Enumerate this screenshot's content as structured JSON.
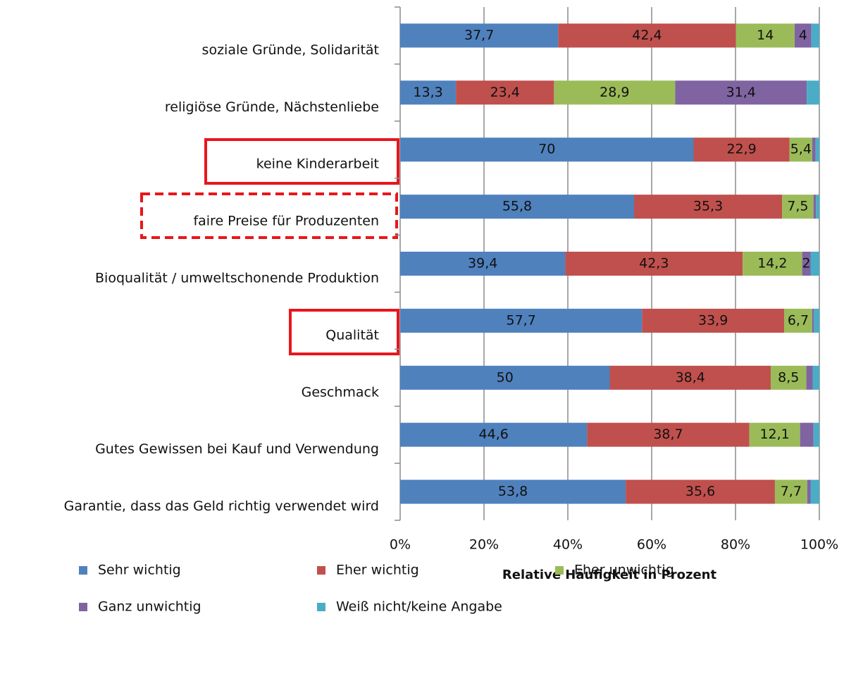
{
  "chart_data": {
    "type": "stacked_barh",
    "categories": [
      "soziale Gründe, Solidarität",
      "religiöse Gründe, Nächstenliebe",
      "keine Kinderarbeit",
      "faire Preise für Produzenten",
      "Bioqualität / umweltschonende Produktion",
      "Qualität",
      "Geschmack",
      "Gutes Gewissen bei Kauf und Verwendung",
      "Garantie, dass das Geld richtig verwendet wird"
    ],
    "series": [
      {
        "name": "Sehr wichtig",
        "color": "#4f81bd",
        "values": [
          37.7,
          13.3,
          70,
          55.8,
          39.4,
          57.7,
          50,
          44.6,
          53.8
        ],
        "value_labels": [
          "37,7",
          "13,3",
          "70",
          "55,8",
          "39,4",
          "57,7",
          "50",
          "44,6",
          "53,8"
        ]
      },
      {
        "name": "Eher wichtig",
        "color": "#c0504d",
        "values": [
          42.4,
          23.4,
          22.9,
          35.3,
          42.3,
          33.9,
          38.4,
          38.7,
          35.6
        ],
        "value_labels": [
          "42,4",
          "23,4",
          "22,9",
          "35,3",
          "42,3",
          "33,9",
          "38,4",
          "38,7",
          "35,6"
        ]
      },
      {
        "name": "Eher unwichtig",
        "color": "#9bbb59",
        "values": [
          14,
          28.9,
          5.4,
          7.5,
          14.2,
          6.7,
          8.5,
          12.1,
          7.7
        ],
        "value_labels": [
          "14",
          "28,9",
          "5,4",
          "7,5",
          "14,2",
          "6,7",
          "8,5",
          "12,1",
          "7,7"
        ]
      },
      {
        "name": "Ganz unwichtig",
        "color": "#8064a2",
        "values": [
          4,
          31.4,
          0.8,
          0.6,
          2,
          0.4,
          1.5,
          3.2,
          0.8
        ],
        "value_labels": [
          "4",
          "31,4",
          null,
          null,
          "2",
          null,
          null,
          null,
          null
        ]
      },
      {
        "name": "Weiß nicht/keine Angabe",
        "color": "#4bacc6",
        "values": [
          1.9,
          3,
          0.9,
          0.8,
          2.1,
          1.3,
          1.6,
          1.4,
          2.1
        ],
        "value_labels": [
          null,
          null,
          null,
          null,
          null,
          null,
          null,
          null,
          null
        ]
      }
    ],
    "xlabel": "Relative Häufigkeit in Prozent",
    "xlim": [
      0,
      100
    ],
    "xticks": [
      {
        "value": 0,
        "label": "0%"
      },
      {
        "value": 20,
        "label": "20%"
      },
      {
        "value": 40,
        "label": "40%"
      },
      {
        "value": 60,
        "label": "60%"
      },
      {
        "value": 80,
        "label": "80%"
      },
      {
        "value": 100,
        "label": "100%"
      }
    ],
    "grid": true,
    "legend": "bottom"
  }
}
